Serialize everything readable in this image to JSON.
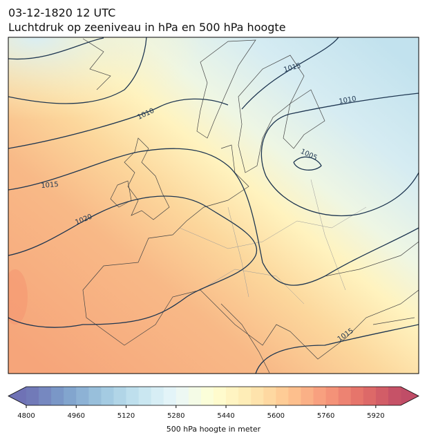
{
  "header": {
    "title_lines": [
      "03-12-1820 12 UTC",
      "Luchtdruk op zeeniveau in hPa en 500 hPa hoogte"
    ]
  },
  "map": {
    "isobar_labels": [
      "1015",
      "1010",
      "1010",
      "1005",
      "1015",
      "1020",
      "1015"
    ]
  },
  "colorbar": {
    "label": "500 hPa hoogte in meter",
    "lim": [
      4800,
      6000
    ],
    "level_step": 40,
    "ticks": [
      4800,
      4960,
      5120,
      5280,
      5440,
      5600,
      5760,
      5920
    ]
  }
}
